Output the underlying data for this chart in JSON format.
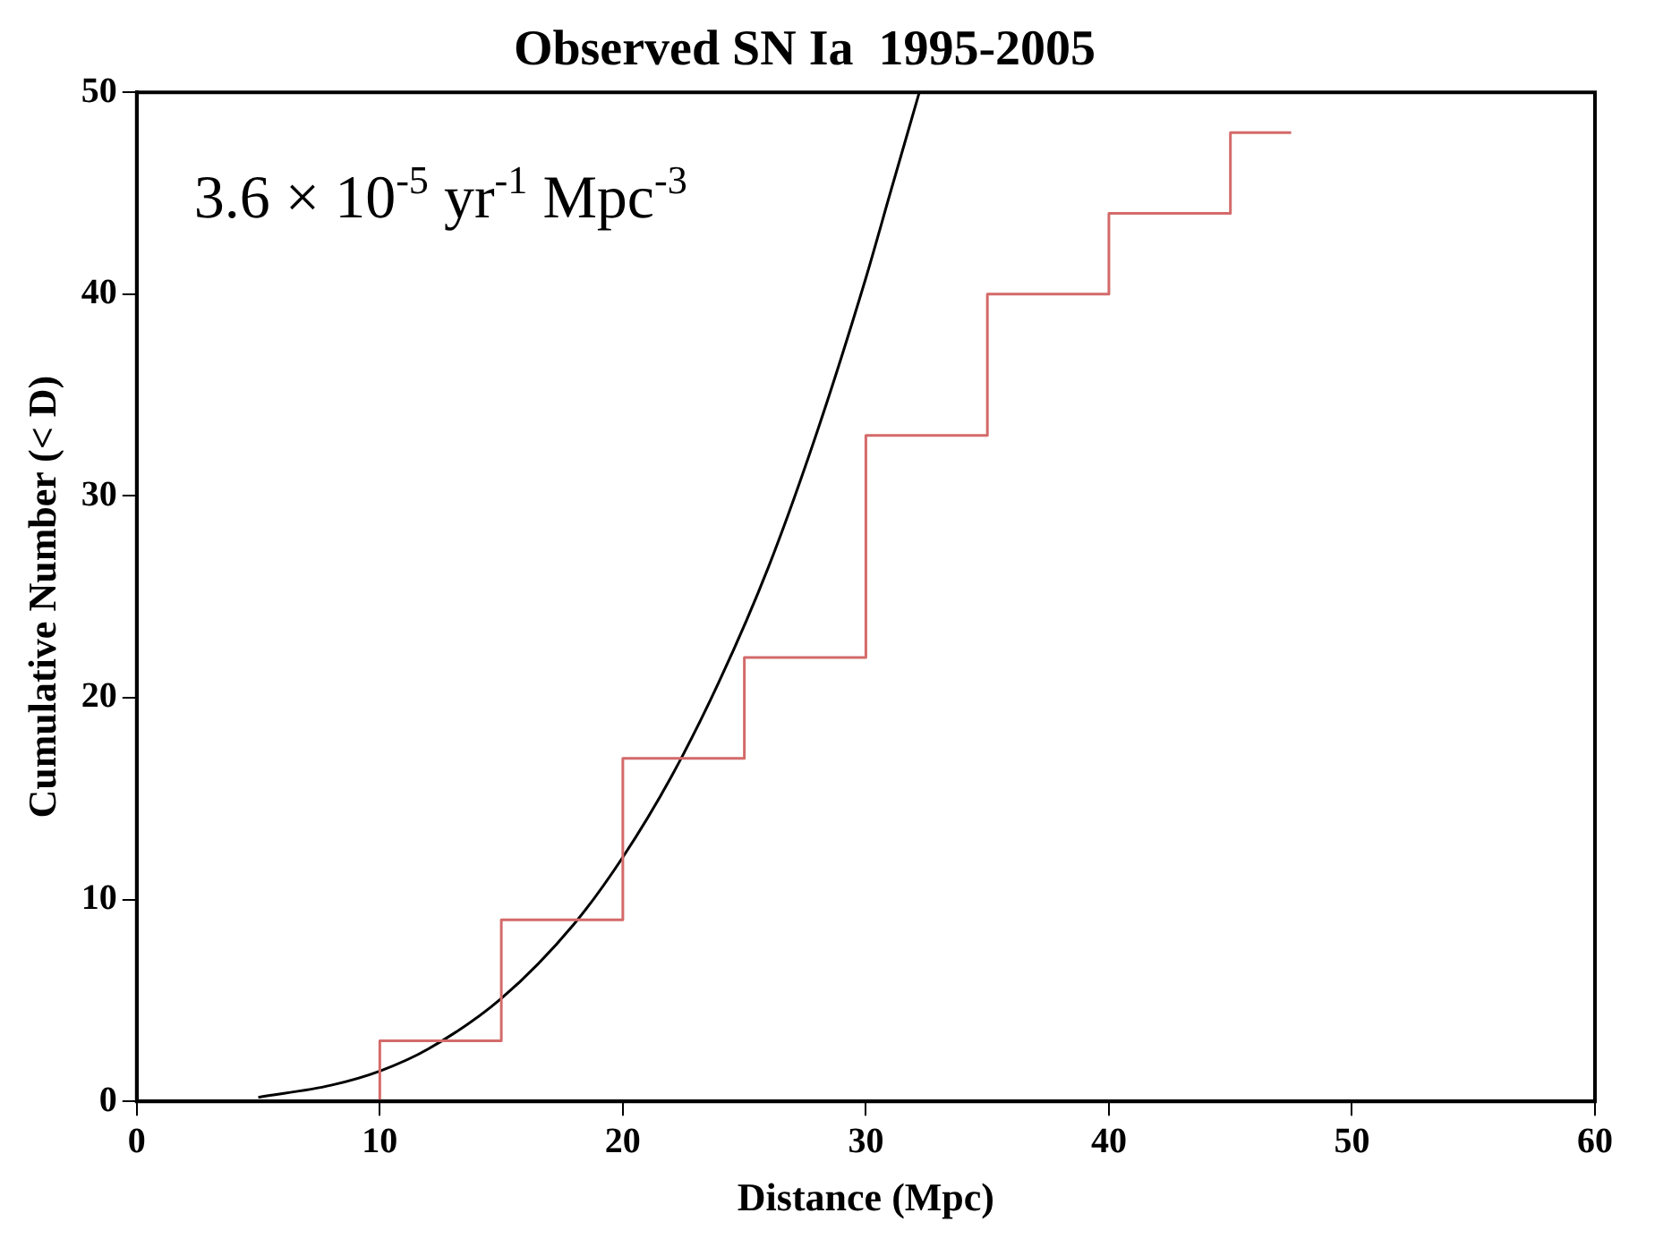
{
  "chart_data": {
    "type": "step",
    "title": "Observed SN Ia  1995-2005",
    "xlabel": "Distance (Mpc)",
    "ylabel": "Cumulative Number (< D)",
    "annotations": [
      "3.6 × 10$^{-5}$ yr$^{-1}$ Mpc$^{-3}$"
    ],
    "series": [
      {
        "color": "#d46a6a",
        "x": [
          10,
          10,
          15,
          20,
          25,
          30,
          35,
          40,
          45,
          47.5
        ],
        "values": [
          0,
          3,
          9,
          17,
          22,
          33,
          40,
          44,
          48,
          48
        ]
      },
      {
        "type": "line",
        "color": "#000000",
        "x": [
          5,
          8,
          10,
          12,
          15,
          18,
          20,
          22,
          24,
          26,
          28,
          30,
          31,
          32.2
        ],
        "values": [
          0.2,
          0.8,
          1.5,
          2.6,
          5.1,
          8.8,
          12.1,
          16.1,
          20.9,
          26.5,
          33.2,
          40.8,
          45,
          50
        ]
      }
    ],
    "xlim": [
      0,
      60
    ],
    "xticks": [
      0,
      10,
      20,
      30,
      40,
      50,
      60
    ],
    "ylim": [
      0,
      50
    ],
    "yticks": [
      0,
      10,
      20,
      30,
      40,
      50
    ],
    "grid": false,
    "legend": false,
    "marker": "none",
    "line_style": "solid"
  }
}
